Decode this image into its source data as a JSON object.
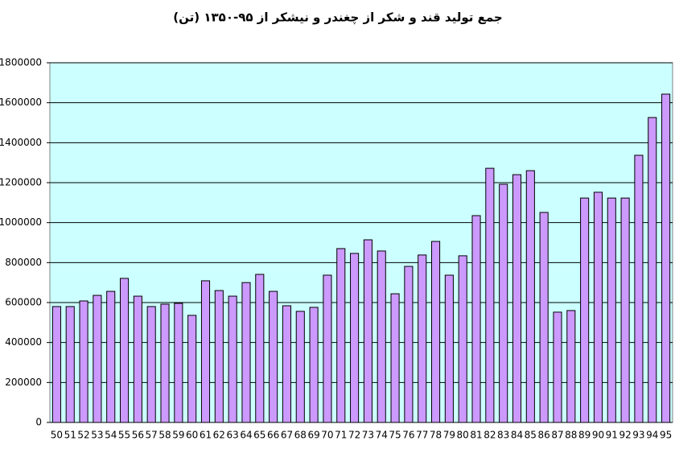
{
  "chart_data": {
    "type": "bar",
    "title": "جمع تولید قند و شکر از چغندر و نیشکر از ۹۵-۱۳۵۰ (تن)",
    "categories": [
      "50",
      "51",
      "52",
      "53",
      "54",
      "55",
      "56",
      "57",
      "58",
      "59",
      "60",
      "61",
      "62",
      "63",
      "64",
      "65",
      "66",
      "67",
      "68",
      "69",
      "70",
      "71",
      "72",
      "73",
      "74",
      "75",
      "76",
      "77",
      "78",
      "79",
      "80",
      "81",
      "82",
      "83",
      "84",
      "85",
      "86",
      "87",
      "88",
      "89",
      "90",
      "91",
      "92",
      "93",
      "94",
      "95"
    ],
    "values": [
      580000,
      580000,
      608000,
      636000,
      656000,
      721000,
      632000,
      580000,
      592000,
      596000,
      536000,
      709000,
      660000,
      632000,
      700000,
      741000,
      656000,
      584000,
      556000,
      576000,
      737000,
      870000,
      846000,
      914000,
      858000,
      644000,
      781000,
      838000,
      906000,
      737000,
      834000,
      1035000,
      1272000,
      1192000,
      1240000,
      1260000,
      1051000,
      552000,
      560000,
      1123000,
      1152000,
      1123000,
      1123000,
      1337000,
      1526000,
      1643000
    ],
    "color": "#cc99ff",
    "ylim": [
      0,
      1800000
    ],
    "yticks": [
      0,
      200000,
      400000,
      600000,
      800000,
      1000000,
      1200000,
      1400000,
      1600000,
      1800000
    ],
    "grid": true
  }
}
